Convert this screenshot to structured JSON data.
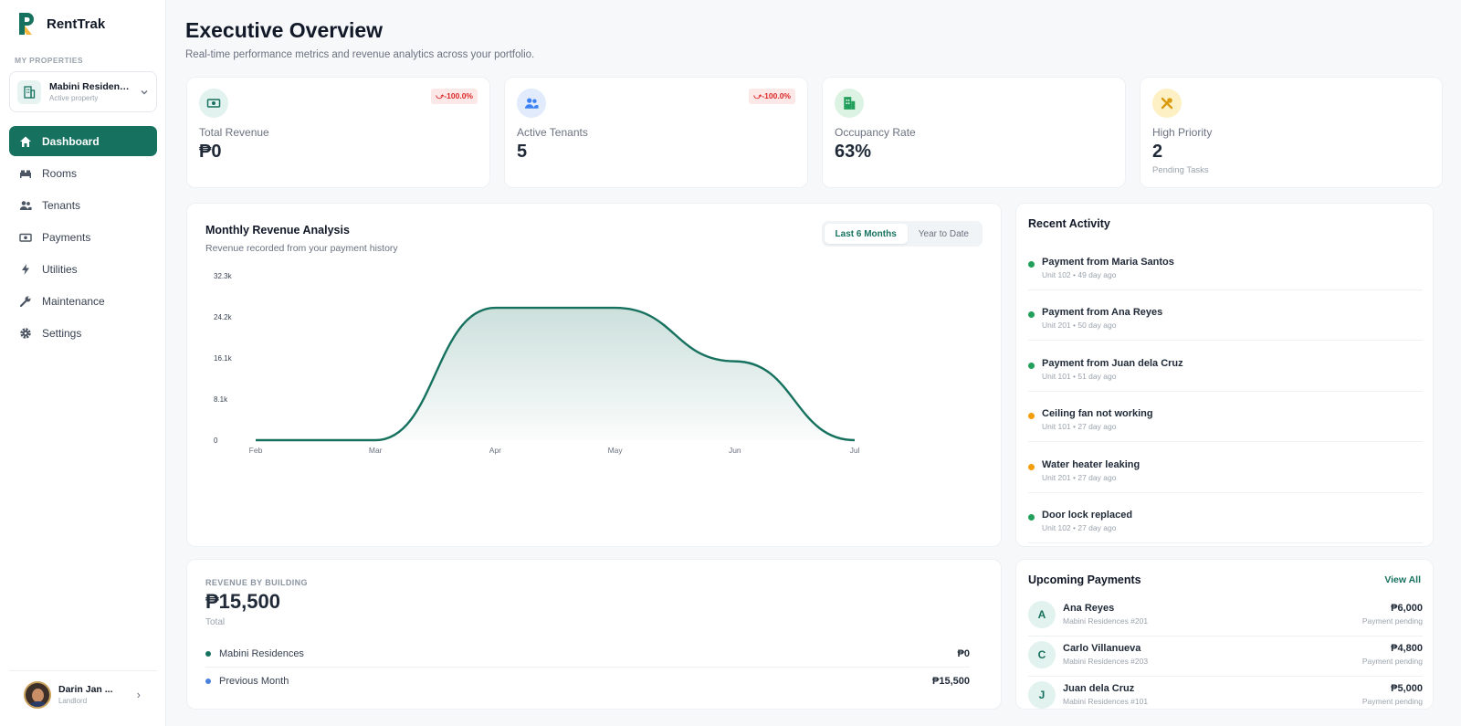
{
  "brand": {
    "name": "RentTrak"
  },
  "sidebar": {
    "section_label": "MY PROPERTIES",
    "property": {
      "name": "Mabini Residenc...",
      "status": "Active property"
    },
    "nav": [
      {
        "label": "Dashboard",
        "icon": "home-icon",
        "active": true
      },
      {
        "label": "Rooms",
        "icon": "bed-icon",
        "active": false
      },
      {
        "label": "Tenants",
        "icon": "users-icon",
        "active": false
      },
      {
        "label": "Payments",
        "icon": "cash-icon",
        "active": false
      },
      {
        "label": "Utilities",
        "icon": "bolt-icon",
        "active": false
      },
      {
        "label": "Maintenance",
        "icon": "wrench-icon",
        "active": false
      },
      {
        "label": "Settings",
        "icon": "gear-icon",
        "active": false
      }
    ],
    "user": {
      "name": "Darin Jan ...",
      "role": "Landlord"
    }
  },
  "header": {
    "title": "Executive Overview",
    "subtitle": "Real-time performance metrics and revenue analytics across your portfolio."
  },
  "stats": [
    {
      "label": "Total Revenue",
      "value": "₱0",
      "badge": "-100.0%",
      "icon": "cash-icon"
    },
    {
      "label": "Active Tenants",
      "value": "5",
      "badge": "-100.0%",
      "icon": "users-icon"
    },
    {
      "label": "Occupancy Rate",
      "value": "63%",
      "badge": "",
      "icon": "building-icon"
    },
    {
      "label": "High Priority",
      "value": "2",
      "badge": "",
      "sub": "Pending Tasks",
      "icon": "tools-icon"
    }
  ],
  "revenue_chart": {
    "title": "Monthly Revenue Analysis",
    "subtitle": "Revenue recorded from your payment history",
    "toggle": [
      "Last 6 Months",
      "Year to Date"
    ],
    "active_toggle": "Last 6 Months"
  },
  "chart_data": {
    "type": "area",
    "x": [
      "Feb",
      "Mar",
      "Apr",
      "May",
      "Jun",
      "Jul"
    ],
    "y_ticks": [
      "0",
      "8.1k",
      "16.1k",
      "24.2k",
      "32.3k"
    ],
    "ylim": [
      0,
      32300
    ],
    "series": [
      {
        "values": [
          0,
          0,
          26000,
          26000,
          15500,
          0
        ]
      }
    ],
    "color": "#17715f",
    "grid": false
  },
  "recent_activity": {
    "title": "Recent Activity",
    "items": [
      {
        "title": "Payment from Maria Santos",
        "meta": "Unit 102 • 49 day ago",
        "color": "#22a05b"
      },
      {
        "title": "Payment from Ana Reyes",
        "meta": "Unit 201 • 50 day ago",
        "color": "#22a05b"
      },
      {
        "title": "Payment from Juan dela Cruz",
        "meta": "Unit 101 • 51 day ago",
        "color": "#22a05b"
      },
      {
        "title": "Ceiling fan not working",
        "meta": "Unit 101 • 27 day ago",
        "color": "#f59e0b"
      },
      {
        "title": "Water heater leaking",
        "meta": "Unit 201 • 27 day ago",
        "color": "#f59e0b"
      },
      {
        "title": "Door lock replaced",
        "meta": "Unit 102 • 27 day ago",
        "color": "#22a05b"
      }
    ]
  },
  "revenue_by_building": {
    "label": "REVENUE BY BUILDING",
    "total": "₱15,500",
    "total_label": "Total",
    "rows": [
      {
        "name": "Mabini Residences",
        "amount": "₱0",
        "color": "#17715f"
      },
      {
        "name": "Previous Month",
        "amount": "₱15,500",
        "color": "#4a7fdc"
      }
    ]
  },
  "upcoming_payments": {
    "title": "Upcoming Payments",
    "view_all": "View All",
    "items": [
      {
        "initial": "A",
        "name": "Ana Reyes",
        "unit": "Mabini Residences #201",
        "amount": "₱6,000",
        "status": "Payment pending"
      },
      {
        "initial": "C",
        "name": "Carlo Villanueva",
        "unit": "Mabini Residences #203",
        "amount": "₱4,800",
        "status": "Payment pending"
      },
      {
        "initial": "J",
        "name": "Juan dela Cruz",
        "unit": "Mabini Residences #101",
        "amount": "₱5,000",
        "status": "Payment pending"
      }
    ]
  }
}
